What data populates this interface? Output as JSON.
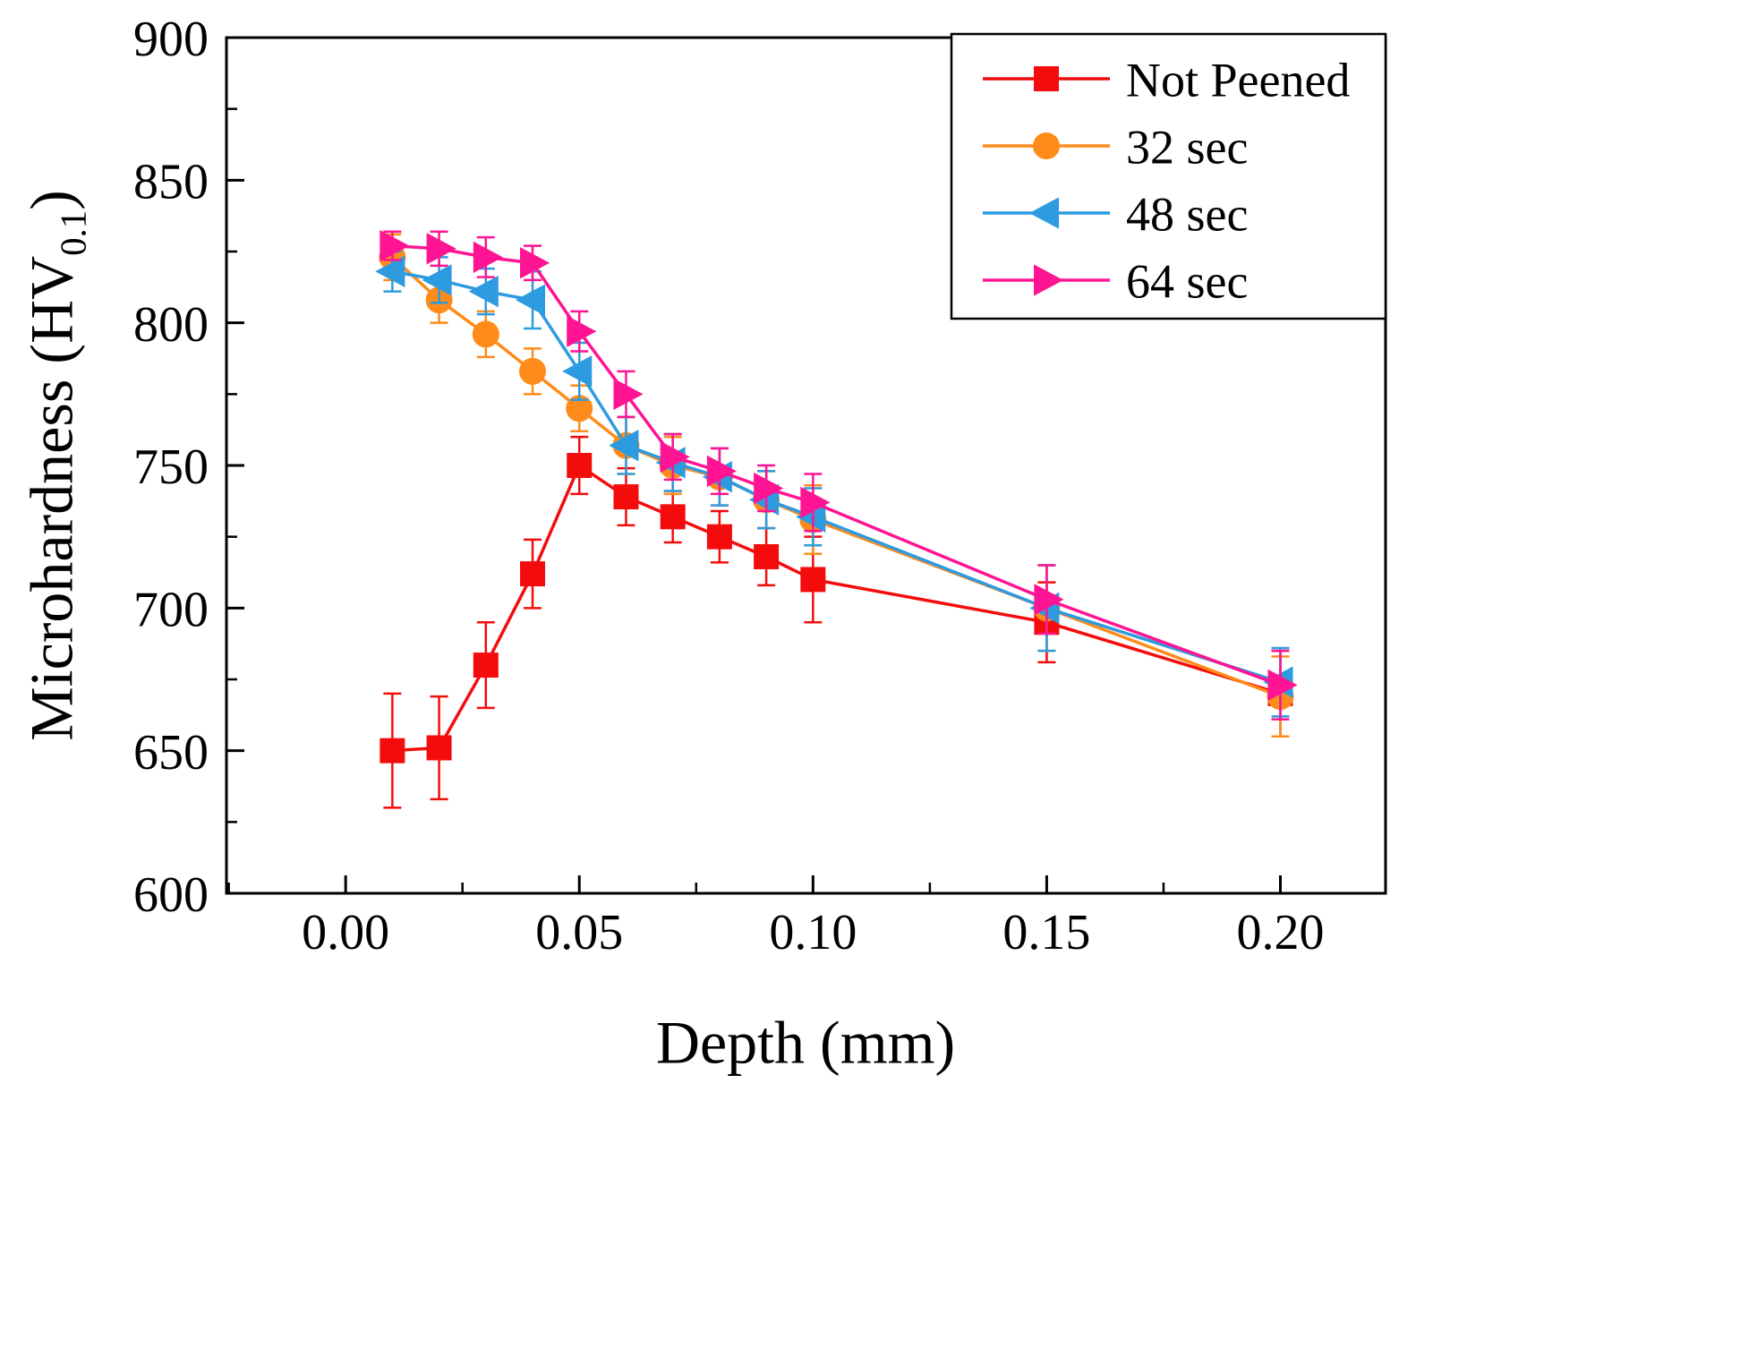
{
  "chart_data": {
    "type": "line",
    "title": "",
    "xlabel": "Depth (mm)",
    "ylabel": "Microhardness (HV0.1)",
    "ylabel_pre": "Microhardness (HV",
    "ylabel_sub": "0.1",
    "ylabel_post": ")",
    "xlim": [
      -0.0255,
      0.2225
    ],
    "ylim": [
      600,
      900
    ],
    "xtick_values": [
      0.0,
      0.05,
      0.1,
      0.15,
      0.2
    ],
    "xtick_labels": [
      "0.00",
      "0.05",
      "0.10",
      "0.15",
      "0.20"
    ],
    "ytick_values": [
      600,
      650,
      700,
      750,
      800,
      850,
      900
    ],
    "ytick_labels": [
      "600",
      "650",
      "700",
      "750",
      "800",
      "850",
      "900"
    ],
    "grid": false,
    "legend_position": "top-right",
    "x": [
      0.01,
      0.02,
      0.03,
      0.04,
      0.05,
      0.06,
      0.07,
      0.08,
      0.09,
      0.1,
      0.15,
      0.2
    ],
    "series": [
      {
        "name": "Not Peened",
        "marker": "square",
        "color": "#F40C0C",
        "values": [
          650,
          651,
          680,
          712,
          750,
          739,
          732,
          725,
          718,
          710,
          695,
          670
        ],
        "errors": [
          20,
          18,
          15,
          12,
          10,
          10,
          9,
          9,
          10,
          15,
          14,
          15
        ]
      },
      {
        "name": "32 sec",
        "marker": "circle",
        "color": "#FF8C1A",
        "values": [
          823,
          808,
          796,
          783,
          770,
          757,
          750,
          746,
          738,
          731,
          700,
          669
        ],
        "errors": [
          8,
          8,
          8,
          8,
          8,
          10,
          10,
          10,
          10,
          12,
          15,
          14
        ]
      },
      {
        "name": "48 sec",
        "marker": "triangle-left",
        "color": "#2D9BE0",
        "values": [
          818,
          815,
          811,
          808,
          783,
          757,
          751,
          746,
          738,
          732,
          700,
          674
        ],
        "errors": [
          7,
          8,
          8,
          10,
          10,
          10,
          10,
          10,
          10,
          10,
          15,
          12
        ]
      },
      {
        "name": "64 sec",
        "marker": "triangle-right",
        "color": "#FF1493",
        "values": [
          827,
          826,
          823,
          821,
          797,
          775,
          753,
          748,
          742,
          737,
          703,
          673
        ],
        "errors": [
          5,
          6,
          7,
          6,
          7,
          8,
          8,
          8,
          8,
          10,
          12,
          12
        ]
      }
    ]
  }
}
